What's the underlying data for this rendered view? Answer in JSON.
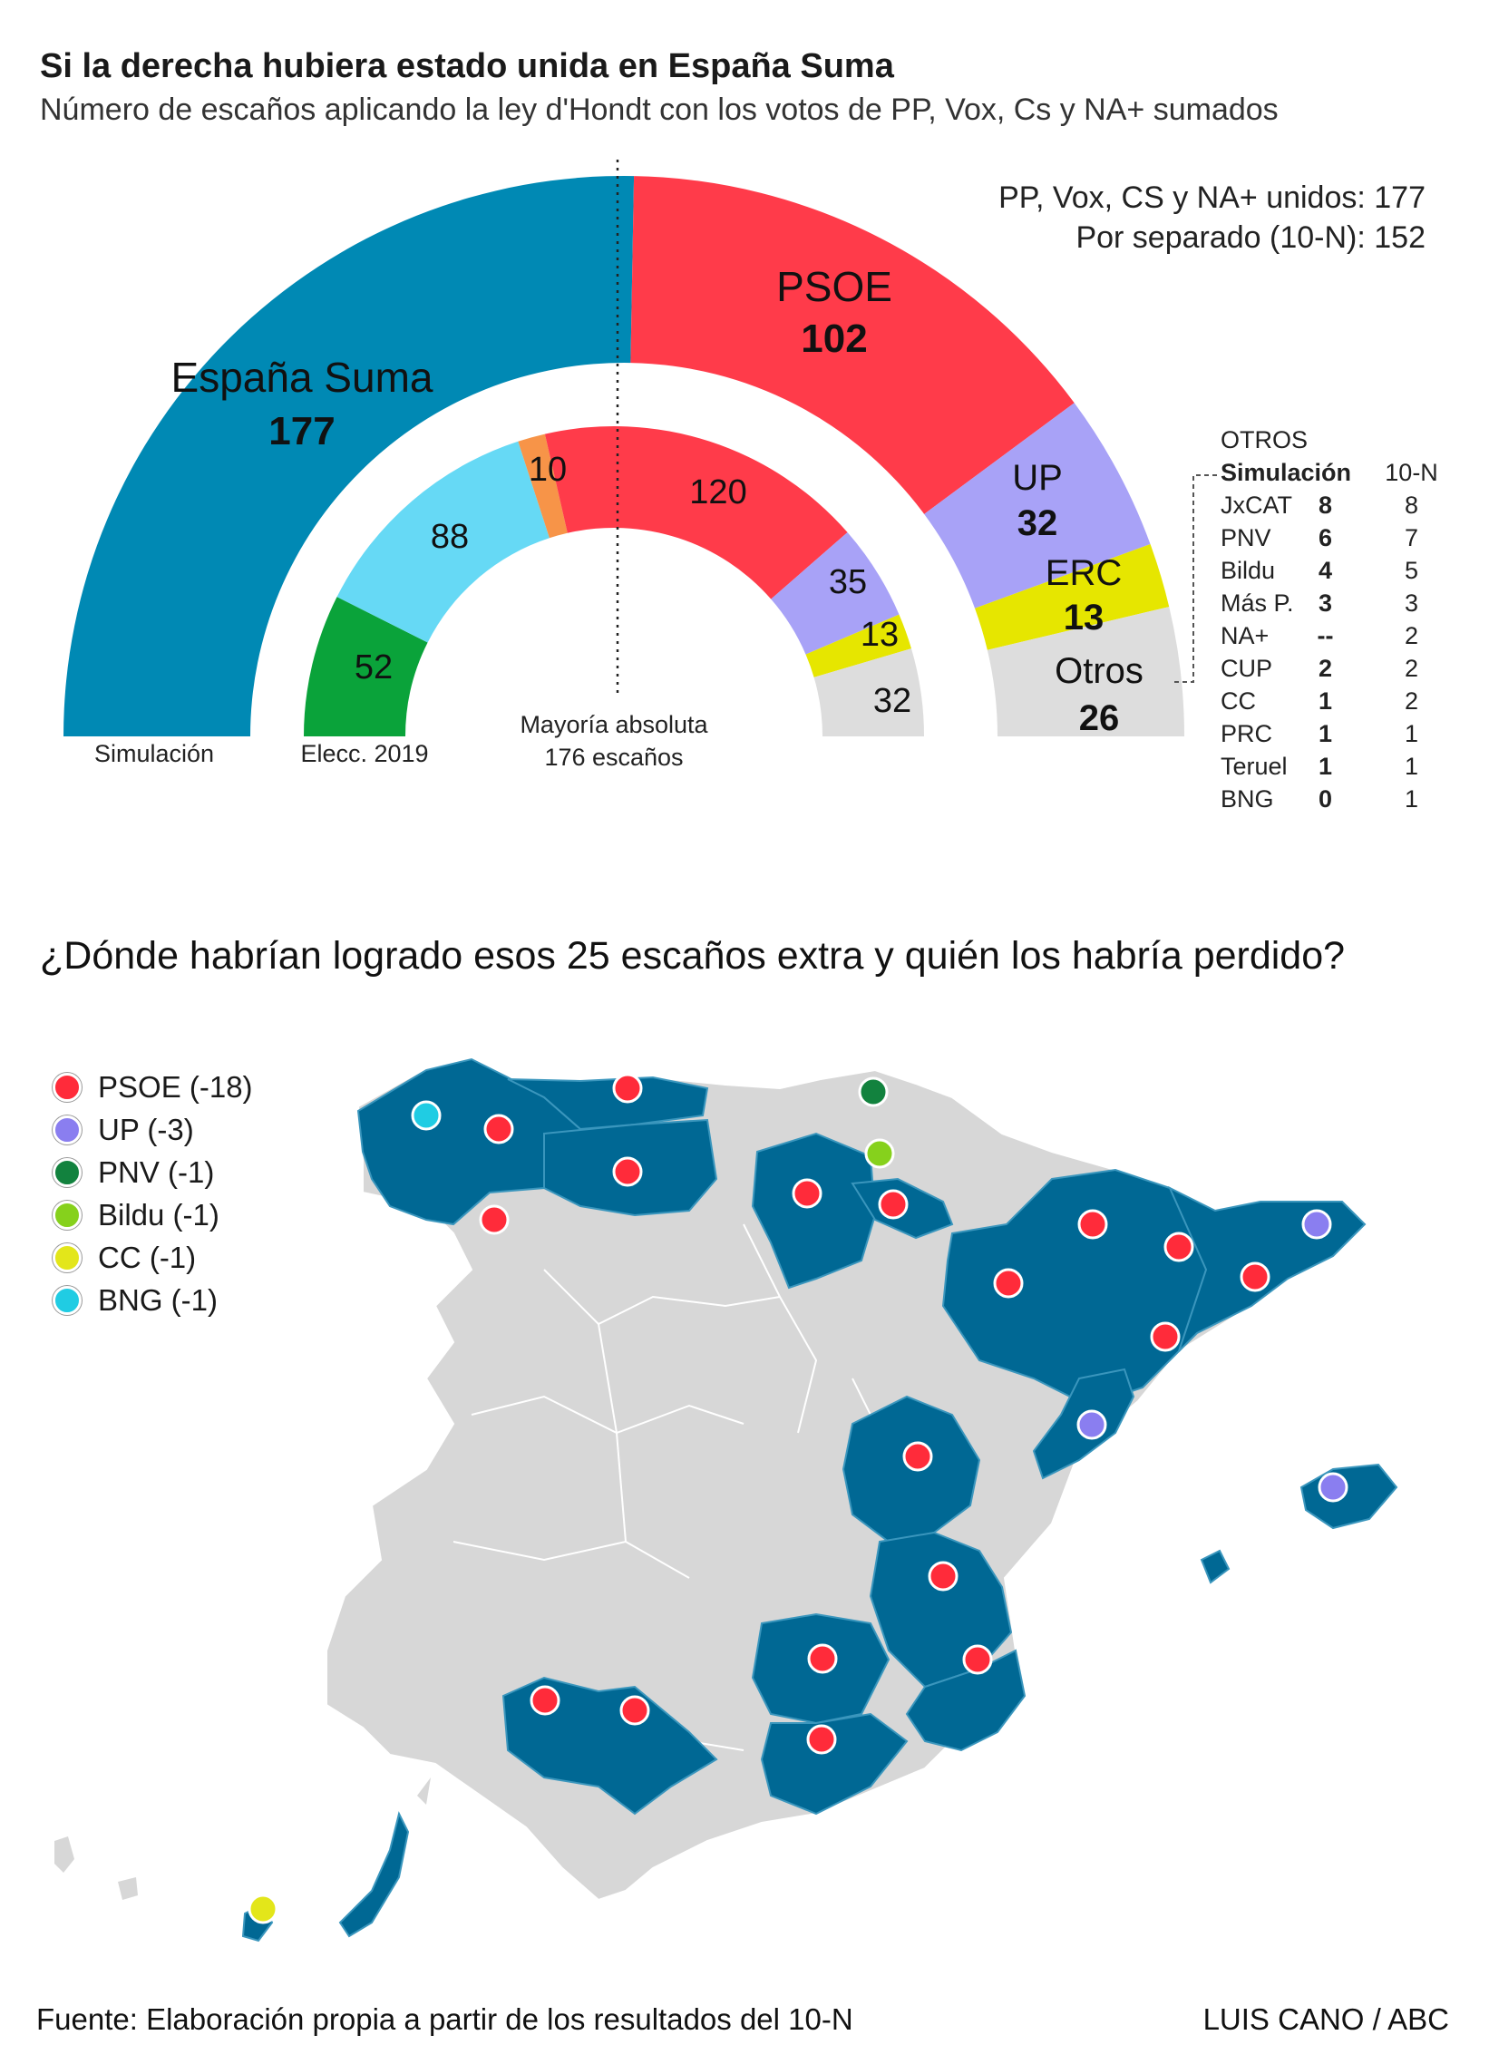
{
  "title": "Si la derecha hubiera estado unida en España Suma",
  "subtitle": "Número de escaños aplicando la ley d'Hondt con los votos de PP, Vox, Cs y NA+ sumados",
  "totals": {
    "united": "PP, Vox, CS y NA+ unidos: 177",
    "separate": "Por separado (10-N): 152"
  },
  "colors": {
    "espana_suma": "#0089b4",
    "psoe": "#ff3b4a",
    "up": "#a8a2f7",
    "erc": "#e6e600",
    "otros": "#dddddd",
    "cs": "#f79448",
    "vox": "#0aa33a",
    "pp": "#66d9f5",
    "map_blue": "#006894",
    "map_grey": "#d7d7d7"
  },
  "chart_data": [
    {
      "type": "pie",
      "subtype": "hemicycle",
      "name": "Simulación",
      "label": "Simulación",
      "total_seats": 350,
      "segments": [
        {
          "party": "España Suma",
          "value": 177
        },
        {
          "party": "PSOE",
          "value": 102
        },
        {
          "party": "UP",
          "value": 32
        },
        {
          "party": "ERC",
          "value": 13
        },
        {
          "party": "Otros",
          "value": 26
        }
      ]
    },
    {
      "type": "pie",
      "subtype": "hemicycle",
      "name": "Elecc. 2019",
      "label": "Elecc. 2019",
      "total_seats": 350,
      "segments": [
        {
          "party": "Vox",
          "value": 52
        },
        {
          "party": "PP",
          "value": 88
        },
        {
          "party": "Cs",
          "value": 10
        },
        {
          "party": "PSOE",
          "value": 120
        },
        {
          "party": "UP",
          "value": 35
        },
        {
          "party": "ERC",
          "value": 13
        },
        {
          "party": "Otros",
          "value": 32
        }
      ]
    }
  ],
  "majority": {
    "line1": "Mayoría absoluta",
    "line2": "176 escaños"
  },
  "outer_labels": {
    "espana_suma": {
      "name": "España Suma",
      "seats": "177"
    },
    "psoe": {
      "name": "PSOE",
      "seats": "102"
    },
    "up": {
      "name": "UP",
      "seats": "32"
    },
    "erc": {
      "name": "ERC",
      "seats": "13"
    },
    "otros": {
      "name": "Otros",
      "seats": "26"
    }
  },
  "inner_labels": {
    "vox": "52",
    "pp": "88",
    "cs": "10",
    "psoe": "120",
    "up": "35",
    "erc": "13",
    "otros": "32"
  },
  "axis_labels": {
    "simulacion": "Simulación",
    "elecc": "Elecc. 2019"
  },
  "otros_table": {
    "title": "OTROS",
    "col_sim": "Simulación",
    "col_10n": "10-N",
    "rows": [
      {
        "party": "JxCAT",
        "sim": "8",
        "n10": "8"
      },
      {
        "party": "PNV",
        "sim": "6",
        "n10": "7"
      },
      {
        "party": "Bildu",
        "sim": "4",
        "n10": "5"
      },
      {
        "party": "Más P.",
        "sim": "3",
        "n10": "3"
      },
      {
        "party": "NA+",
        "sim": "--",
        "n10": "2"
      },
      {
        "party": "CUP",
        "sim": "2",
        "n10": "2"
      },
      {
        "party": "CC",
        "sim": "1",
        "n10": "2"
      },
      {
        "party": "PRC",
        "sim": "1",
        "n10": "1"
      },
      {
        "party": "Teruel",
        "sim": "1",
        "n10": "1"
      },
      {
        "party": "BNG",
        "sim": "0",
        "n10": "1"
      }
    ]
  },
  "map_question": "¿Dónde habrían logrado esos 25 escaños extra y quién los habría perdido?",
  "map_legend": [
    {
      "label": "PSOE (-18)",
      "color": "#ff2b3a"
    },
    {
      "label": "UP (-3)",
      "color": "#8a7ef0"
    },
    {
      "label": "PNV (-1)",
      "color": "#12823e"
    },
    {
      "label": "Bildu (-1)",
      "color": "#86d11c"
    },
    {
      "label": "CC (-1)",
      "color": "#e3e61a"
    },
    {
      "label": "BNG (-1)",
      "color": "#20cce3"
    }
  ],
  "footer": {
    "source": "Fuente: Elaboración propia a partir de los resultados del 10-N",
    "author": "LUIS CANO / ABC"
  }
}
